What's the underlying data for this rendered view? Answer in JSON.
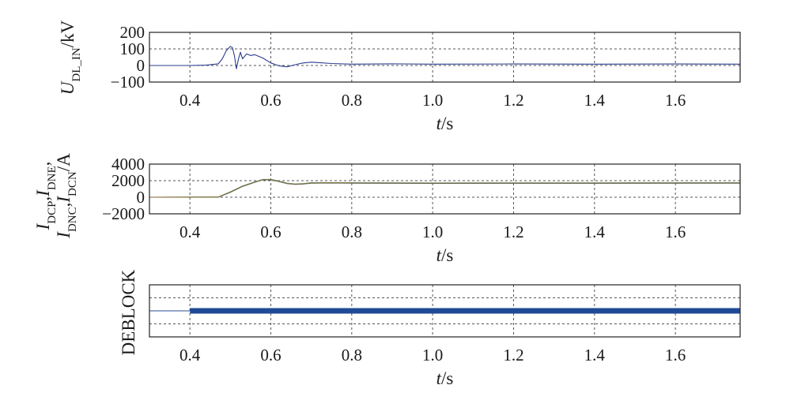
{
  "chart_data": [
    {
      "type": "line",
      "ylabel": {
        "main": "U",
        "sub": "DL_IN",
        "unit": "/kV"
      },
      "xlabel": {
        "var": "t",
        "unit": "/s"
      },
      "xlim": [
        0.3,
        1.76
      ],
      "ylim": [
        -100,
        200
      ],
      "xticks": [
        "0.4",
        "0.6",
        "0.8",
        "1.0",
        "1.2",
        "1.4",
        "1.6"
      ],
      "yticks": [
        "200",
        "100",
        "0",
        "−100"
      ],
      "grid": true,
      "series": [
        {
          "color": "#2b3d8f",
          "x": [
            0.3,
            0.35,
            0.4,
            0.44,
            0.47,
            0.48,
            0.49,
            0.5,
            0.505,
            0.51,
            0.515,
            0.52,
            0.525,
            0.53,
            0.54,
            0.55,
            0.56,
            0.57,
            0.58,
            0.6,
            0.62,
            0.64,
            0.66,
            0.68,
            0.7,
            0.72,
            0.75,
            0.8,
            0.9,
            1.0,
            1.2,
            1.4,
            1.6,
            1.76
          ],
          "y": [
            0,
            0,
            0,
            2,
            10,
            40,
            90,
            115,
            108,
            60,
            -20,
            40,
            80,
            40,
            70,
            60,
            65,
            55,
            45,
            15,
            -2,
            -8,
            5,
            15,
            20,
            17,
            12,
            8,
            10,
            8,
            9,
            8,
            9,
            8
          ]
        }
      ]
    },
    {
      "type": "line",
      "ylabel": {
        "line1": [
          {
            "t": "I",
            "s": "DCP"
          },
          {
            "t": "I",
            "s": "DNE"
          }
        ],
        "line2": [
          {
            "t": "I",
            "s": "DNC"
          },
          {
            "t": "I",
            "s": "DCN"
          }
        ],
        "unit": "/A"
      },
      "xlabel": {
        "var": "t",
        "unit": "/s"
      },
      "xlim": [
        0.3,
        1.76
      ],
      "ylim": [
        -2000,
        4000
      ],
      "xticks": [
        "0.4",
        "0.6",
        "0.8",
        "1.0",
        "1.2",
        "1.4",
        "1.6"
      ],
      "yticks": [
        "4000",
        "2000",
        "0",
        "−2000"
      ],
      "grid": true,
      "series": [
        {
          "color": "#2b3d8f",
          "x": [
            0.3,
            0.47,
            0.5,
            0.53,
            0.56,
            0.58,
            0.6,
            0.62,
            0.64,
            0.66,
            0.68,
            0.7,
            0.75,
            0.8,
            1.0,
            1.76
          ],
          "y": [
            0,
            0,
            600,
            1300,
            1800,
            2100,
            2100,
            1900,
            1650,
            1550,
            1600,
            1700,
            1720,
            1700,
            1680,
            1700
          ]
        },
        {
          "color": "#2bb6b0",
          "x": [
            0.3,
            0.47,
            0.5,
            0.53,
            0.56,
            0.58,
            0.6,
            0.62,
            0.64,
            0.66,
            0.68,
            0.7,
            0.75,
            0.8,
            1.0,
            1.76
          ],
          "y": [
            0,
            30,
            650,
            1350,
            1850,
            2150,
            2150,
            1950,
            1700,
            1600,
            1650,
            1750,
            1760,
            1740,
            1720,
            1740
          ]
        },
        {
          "color": "#4a9a3a",
          "x": [
            0.3,
            0.47,
            0.5,
            0.53,
            0.56,
            0.58,
            0.6,
            0.62,
            0.64,
            0.66,
            0.68,
            0.7,
            0.75,
            0.8,
            1.0,
            1.76
          ],
          "y": [
            0,
            10,
            620,
            1320,
            1820,
            2120,
            2120,
            1920,
            1670,
            1570,
            1620,
            1720,
            1740,
            1720,
            1700,
            1720
          ]
        },
        {
          "color": "#8a6a3a",
          "x": [
            0.3,
            0.47,
            0.5,
            0.53,
            0.56,
            0.58,
            0.6,
            0.62,
            0.64,
            0.66,
            0.68,
            0.7,
            0.75,
            0.8,
            1.0,
            1.76
          ],
          "y": [
            0,
            20,
            640,
            1330,
            1830,
            2130,
            2130,
            1930,
            1680,
            1580,
            1630,
            1730,
            1750,
            1730,
            1710,
            1730
          ]
        }
      ]
    },
    {
      "type": "line",
      "ylabel": {
        "text": "DEBLOCK"
      },
      "xlabel": {
        "var": "t",
        "unit": "/s"
      },
      "xlim": [
        0.3,
        1.76
      ],
      "ylim": [
        0,
        1
      ],
      "xticks": [
        "0.4",
        "0.6",
        "0.8",
        "1.0",
        "1.2",
        "1.4",
        "1.6"
      ],
      "yticks": [],
      "grid": true,
      "series": [
        {
          "color": "#2a4f9a",
          "x": [
            0.3,
            0.4
          ],
          "y": [
            0.5,
            0.5
          ],
          "weight": "thin"
        },
        {
          "color": "#1f4a96",
          "x": [
            0.4,
            1.76
          ],
          "y": [
            0.5,
            0.5
          ],
          "weight": "thick"
        }
      ]
    }
  ]
}
